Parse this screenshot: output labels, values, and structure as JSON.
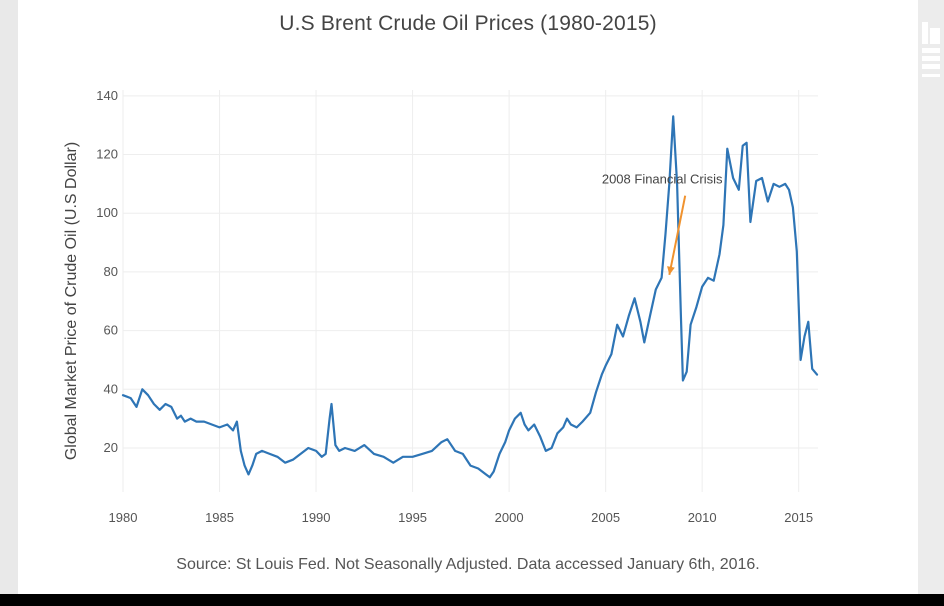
{
  "chart_data": {
    "type": "line",
    "title": "U.S Brent Crude Oil Prices (1980-2015)",
    "ylabel": "Global Market Price of Crude Oil (U.S Dollar)",
    "xlabel": "",
    "source": "Source: St Louis Fed.  Not Seasonally Adjusted. Data accessed January 6th, 2016.",
    "xlim": [
      1980,
      2016
    ],
    "ylim": [
      5,
      142
    ],
    "x_ticks": [
      1980,
      1985,
      1990,
      1995,
      2000,
      2005,
      2010,
      2015
    ],
    "y_ticks": [
      20,
      40,
      60,
      80,
      100,
      120,
      140
    ],
    "grid": true,
    "line_color": "#2e75b6",
    "series": [
      {
        "x": [
          1980.0,
          1980.4,
          1980.7,
          1981.0,
          1981.3,
          1981.6,
          1981.9,
          1982.2,
          1982.5,
          1982.8,
          1983.0,
          1983.2,
          1983.5,
          1983.8,
          1984.2,
          1984.6,
          1985.0,
          1985.4,
          1985.7,
          1985.9,
          1986.1,
          1986.3,
          1986.5,
          1986.7,
          1986.9,
          1987.2,
          1987.6,
          1988.0,
          1988.4,
          1988.8,
          1989.2,
          1989.6,
          1990.0,
          1990.3,
          1990.5,
          1990.7,
          1990.8,
          1991.0,
          1991.2,
          1991.5,
          1992.0,
          1992.5,
          1993.0,
          1993.5,
          1994.0,
          1994.5,
          1995.0,
          1995.5,
          1996.0,
          1996.5,
          1996.8,
          1997.2,
          1997.6,
          1998.0,
          1998.4,
          1998.8,
          1999.0,
          1999.2,
          1999.5,
          1999.8,
          2000.0,
          2000.3,
          2000.6,
          2000.8,
          2001.0,
          2001.3,
          2001.6,
          2001.9,
          2002.2,
          2002.5,
          2002.8,
          2003.0,
          2003.2,
          2003.5,
          2003.8,
          2004.2,
          2004.5,
          2004.8,
          2005.0,
          2005.3,
          2005.6,
          2005.9,
          2006.2,
          2006.5,
          2006.8,
          2007.0,
          2007.3,
          2007.6,
          2007.9,
          2008.1,
          2008.3,
          2008.5,
          2008.7,
          2008.9,
          2009.0,
          2009.2,
          2009.4,
          2009.7,
          2010.0,
          2010.3,
          2010.6,
          2010.9,
          2011.1,
          2011.3,
          2011.6,
          2011.9,
          2012.1,
          2012.3,
          2012.5,
          2012.8,
          2013.1,
          2013.4,
          2013.7,
          2014.0,
          2014.3,
          2014.5,
          2014.7,
          2014.9,
          2015.1,
          2015.3,
          2015.5,
          2015.7,
          2015.95
        ],
        "y": [
          38,
          37,
          34,
          40,
          38,
          35,
          33,
          35,
          34,
          30,
          31,
          29,
          30,
          29,
          29,
          28,
          27,
          28,
          26,
          29,
          19,
          14,
          11,
          14,
          18,
          19,
          18,
          17,
          15,
          16,
          18,
          20,
          19,
          17,
          18,
          30,
          35,
          21,
          19,
          20,
          19,
          21,
          18,
          17,
          15,
          17,
          17,
          18,
          19,
          22,
          23,
          19,
          18,
          14,
          13,
          11,
          10,
          12,
          18,
          22,
          26,
          30,
          32,
          28,
          26,
          28,
          24,
          19,
          20,
          25,
          27,
          30,
          28,
          27,
          29,
          32,
          39,
          45,
          48,
          52,
          62,
          58,
          65,
          71,
          63,
          56,
          65,
          74,
          78,
          93,
          110,
          133,
          110,
          65,
          43,
          46,
          62,
          68,
          75,
          78,
          77,
          86,
          96,
          122,
          112,
          108,
          123,
          124,
          97,
          111,
          112,
          104,
          110,
          109,
          110,
          108,
          102,
          87,
          50,
          58,
          63,
          47,
          45
        ]
      }
    ],
    "annotations": [
      {
        "text": "2008 Financial Crisis",
        "label_x": 2004.2,
        "label_y": 106,
        "arrow_to_x": 2008.3,
        "arrow_to_y": 79,
        "color": "#f0922e"
      }
    ]
  }
}
